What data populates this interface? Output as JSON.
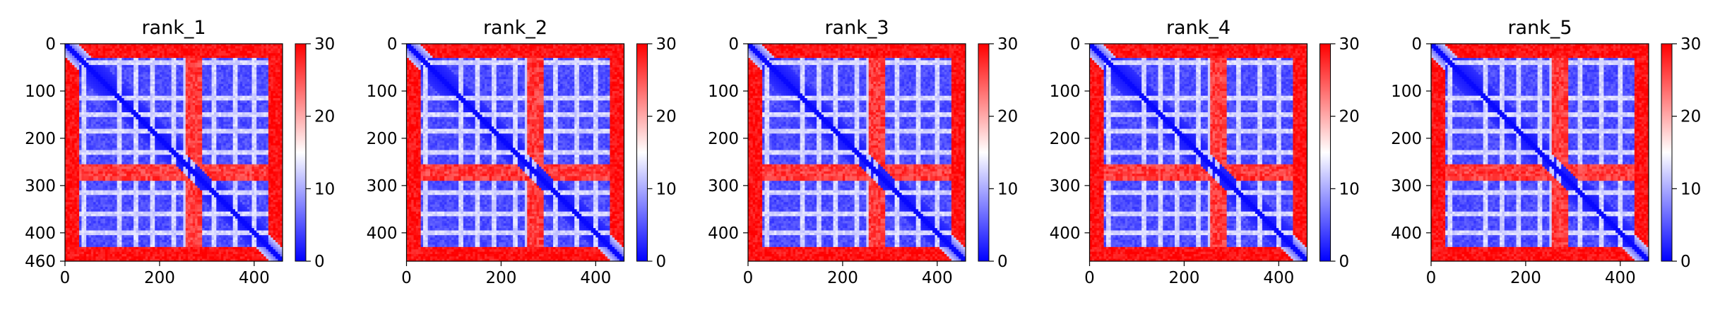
{
  "chart_data": [
    {
      "type": "heatmap",
      "title": "rank_1",
      "xlim": [
        0,
        460
      ],
      "ylim": [
        460,
        0
      ],
      "xticks": [
        0,
        200,
        400
      ],
      "yticks": [
        0,
        100,
        200,
        300,
        400,
        460
      ],
      "ytick_labels": [
        "0",
        "100",
        "200",
        "300",
        "400",
        "460"
      ],
      "colorbar": {
        "min": 0,
        "max": 30,
        "ticks": [
          0,
          10,
          20,
          30
        ]
      },
      "colormap": [
        "#0000ff",
        "#ffffff",
        "#ff0000"
      ],
      "low_region": [
        30,
        430
      ],
      "band": [
        255,
        290
      ],
      "band_value": 24,
      "lines": [
        40,
        115,
        150,
        185,
        230,
        315,
        360,
        400
      ],
      "vlines": [
        255,
        270
      ]
    },
    {
      "type": "heatmap",
      "title": "rank_2",
      "xlim": [
        0,
        460
      ],
      "ylim": [
        460,
        0
      ],
      "xticks": [
        0,
        200,
        400
      ],
      "yticks": [
        0,
        100,
        200,
        300,
        400
      ],
      "ytick_labels": [
        "0",
        "100",
        "200",
        "300",
        "400"
      ],
      "colorbar": {
        "min": 0,
        "max": 30,
        "ticks": [
          0,
          10,
          20,
          30
        ]
      },
      "colormap": [
        "#0000ff",
        "#ffffff",
        "#ff0000"
      ],
      "low_region": [
        30,
        430
      ],
      "band": [
        255,
        290
      ],
      "band_value": 24,
      "lines": [
        40,
        115,
        150,
        185,
        230,
        315,
        360,
        400
      ],
      "vlines": [
        255,
        270
      ]
    },
    {
      "type": "heatmap",
      "title": "rank_3",
      "xlim": [
        0,
        460
      ],
      "ylim": [
        460,
        0
      ],
      "xticks": [
        0,
        200,
        400
      ],
      "yticks": [
        0,
        100,
        200,
        300,
        400
      ],
      "ytick_labels": [
        "0",
        "100",
        "200",
        "300",
        "400"
      ],
      "colorbar": {
        "min": 0,
        "max": 30,
        "ticks": [
          0,
          10,
          20,
          30
        ]
      },
      "colormap": [
        "#0000ff",
        "#ffffff",
        "#ff0000"
      ],
      "low_region": [
        30,
        430
      ],
      "band": [
        255,
        290
      ],
      "band_value": 24,
      "lines": [
        40,
        115,
        150,
        185,
        230,
        315,
        360,
        400
      ],
      "vlines": [
        255,
        270
      ]
    },
    {
      "type": "heatmap",
      "title": "rank_4",
      "xlim": [
        0,
        460
      ],
      "ylim": [
        460,
        0
      ],
      "xticks": [
        0,
        200,
        400
      ],
      "yticks": [
        0,
        100,
        200,
        300,
        400
      ],
      "ytick_labels": [
        "0",
        "100",
        "200",
        "300",
        "400"
      ],
      "colorbar": {
        "min": 0,
        "max": 30,
        "ticks": [
          0,
          10,
          20,
          30
        ]
      },
      "colormap": [
        "#0000ff",
        "#ffffff",
        "#ff0000"
      ],
      "low_region": [
        30,
        430
      ],
      "band": [
        255,
        290
      ],
      "band_value": 24,
      "lines": [
        40,
        115,
        150,
        185,
        230,
        315,
        360,
        400
      ],
      "vlines": [
        255,
        270
      ]
    },
    {
      "type": "heatmap",
      "title": "rank_5",
      "xlim": [
        0,
        460
      ],
      "ylim": [
        460,
        0
      ],
      "xticks": [
        0,
        200,
        400
      ],
      "yticks": [
        0,
        100,
        200,
        300,
        400
      ],
      "ytick_labels": [
        "0",
        "100",
        "200",
        "300",
        "400"
      ],
      "colorbar": {
        "min": 0,
        "max": 30,
        "ticks": [
          0,
          10,
          20,
          30
        ]
      },
      "colormap": [
        "#0000ff",
        "#ffffff",
        "#ff0000"
      ],
      "low_region": [
        30,
        430
      ],
      "band": [
        255,
        290
      ],
      "band_value": 24,
      "lines": [
        40,
        115,
        150,
        185,
        230,
        315,
        360,
        400
      ],
      "vlines": [
        255,
        270
      ]
    }
  ]
}
